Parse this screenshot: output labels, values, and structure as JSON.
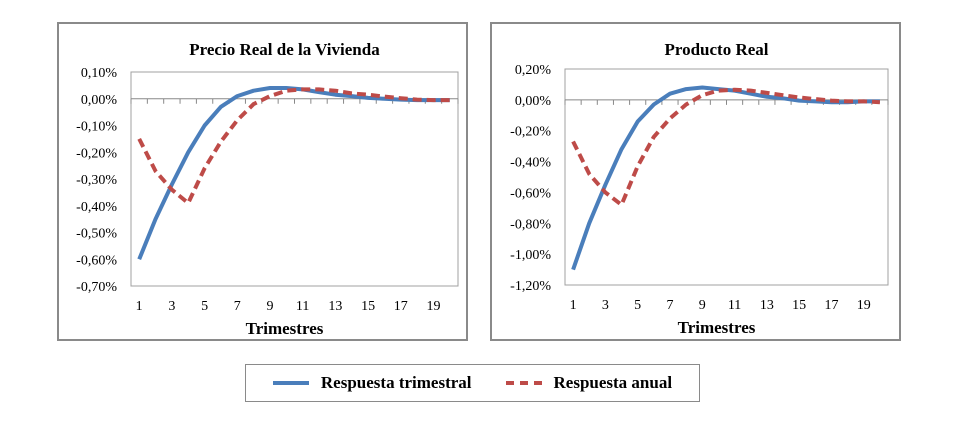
{
  "chart_data": [
    {
      "type": "line",
      "title": "Precio Real de la Vivienda",
      "xlabel": "Trimestres",
      "ylabel": "",
      "x": [
        1,
        2,
        3,
        4,
        5,
        6,
        7,
        8,
        9,
        10,
        11,
        12,
        13,
        14,
        15,
        16,
        17,
        18,
        19,
        20
      ],
      "xticks": [
        "1",
        "3",
        "5",
        "7",
        "9",
        "11",
        "13",
        "15",
        "17",
        "19"
      ],
      "ylim": [
        -0.7,
        0.1
      ],
      "yticks": [
        "0,10%",
        "0,00%",
        "-0,10%",
        "-0,20%",
        "-0,30%",
        "-0,40%",
        "-0,50%",
        "-0,60%",
        "-0,70%"
      ],
      "ytick_values": [
        0.1,
        0,
        -0.1,
        -0.2,
        -0.3,
        -0.4,
        -0.5,
        -0.6,
        -0.7
      ],
      "series": [
        {
          "name": "Respuesta trimestral",
          "values": [
            -0.6,
            -0.45,
            -0.32,
            -0.2,
            -0.1,
            -0.03,
            0.01,
            0.03,
            0.04,
            0.04,
            0.035,
            0.025,
            0.015,
            0.01,
            0.003,
            0,
            -0.003,
            -0.005,
            -0.005,
            -0.005
          ]
        },
        {
          "name": "Respuesta anual",
          "values": [
            -0.15,
            -0.27,
            -0.34,
            -0.39,
            -0.26,
            -0.16,
            -0.08,
            -0.02,
            0.01,
            0.03,
            0.035,
            0.035,
            0.03,
            0.02,
            0.015,
            0.008,
            0.002,
            -0.003,
            -0.005,
            -0.005
          ]
        }
      ]
    },
    {
      "type": "line",
      "title": "Producto Real",
      "xlabel": "Trimestres",
      "ylabel": "",
      "x": [
        1,
        2,
        3,
        4,
        5,
        6,
        7,
        8,
        9,
        10,
        11,
        12,
        13,
        14,
        15,
        16,
        17,
        18,
        19,
        20
      ],
      "xticks": [
        "1",
        "3",
        "5",
        "7",
        "9",
        "11",
        "13",
        "15",
        "17",
        "19"
      ],
      "ylim": [
        -1.2,
        0.2
      ],
      "yticks": [
        "0,20%",
        "0,00%",
        "-0,20%",
        "-0,40%",
        "-0,60%",
        "-0,80%",
        "-1,00%",
        "-1,20%"
      ],
      "ytick_values": [
        0.2,
        0,
        -0.2,
        -0.4,
        -0.6,
        -0.8,
        -1.0,
        -1.2
      ],
      "series": [
        {
          "name": "Respuesta trimestral",
          "values": [
            -1.1,
            -0.8,
            -0.55,
            -0.32,
            -0.14,
            -0.03,
            0.04,
            0.07,
            0.08,
            0.07,
            0.06,
            0.04,
            0.02,
            0.01,
            -0.005,
            -0.01,
            -0.015,
            -0.015,
            -0.01,
            -0.01
          ]
        },
        {
          "name": "Respuesta anual",
          "values": [
            -0.27,
            -0.48,
            -0.6,
            -0.68,
            -0.43,
            -0.24,
            -0.12,
            -0.03,
            0.03,
            0.06,
            0.065,
            0.06,
            0.045,
            0.03,
            0.015,
            0.005,
            -0.005,
            -0.01,
            -0.01,
            -0.015
          ]
        }
      ]
    }
  ],
  "legend": {
    "items": [
      "Respuesta trimestral",
      "Respuesta anual"
    ],
    "placement": "bottom"
  },
  "colors": {
    "trimestral": "#4a7ebb",
    "anual": "#be4b48"
  }
}
